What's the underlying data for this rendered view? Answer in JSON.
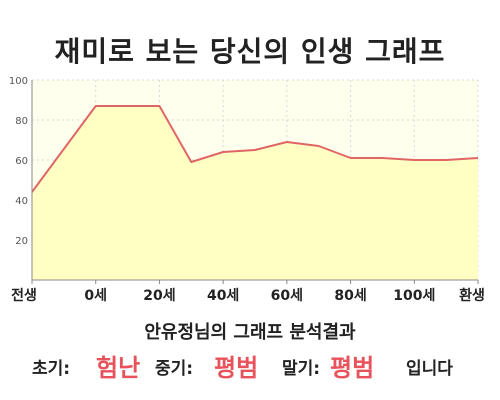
{
  "chart_data": {
    "type": "area",
    "title": "재미로 보는 당신의 인생 그래프",
    "x_tick_labels": [
      "전생",
      "0세",
      "20세",
      "40세",
      "60세",
      "80세",
      "100세",
      "환생"
    ],
    "y_ticks": [
      "20",
      "40",
      "60",
      "80",
      "100"
    ],
    "ylim": [
      0,
      100
    ],
    "grid": true,
    "series": [
      {
        "x": [
          -20,
          0,
          20,
          30,
          40,
          50,
          60,
          70,
          80,
          90,
          100,
          110,
          120
        ],
        "y": [
          44,
          87,
          87,
          59,
          64,
          65,
          69,
          67,
          61,
          61,
          60,
          60,
          61
        ]
      }
    ]
  },
  "result": {
    "heading": "안유정님의 그래프 분석결과",
    "early_label": "초기:",
    "early_value": "험난",
    "middle_label": "중기:",
    "middle_value": "평범",
    "late_label": "말기:",
    "late_value": "평범",
    "suffix": "입니다"
  },
  "colors": {
    "area_fill": "#ffffc4",
    "plot_bg": "#ffffee",
    "line": "#e06666",
    "accent_text": "#e8525a",
    "grid": "#d8d8d8"
  }
}
